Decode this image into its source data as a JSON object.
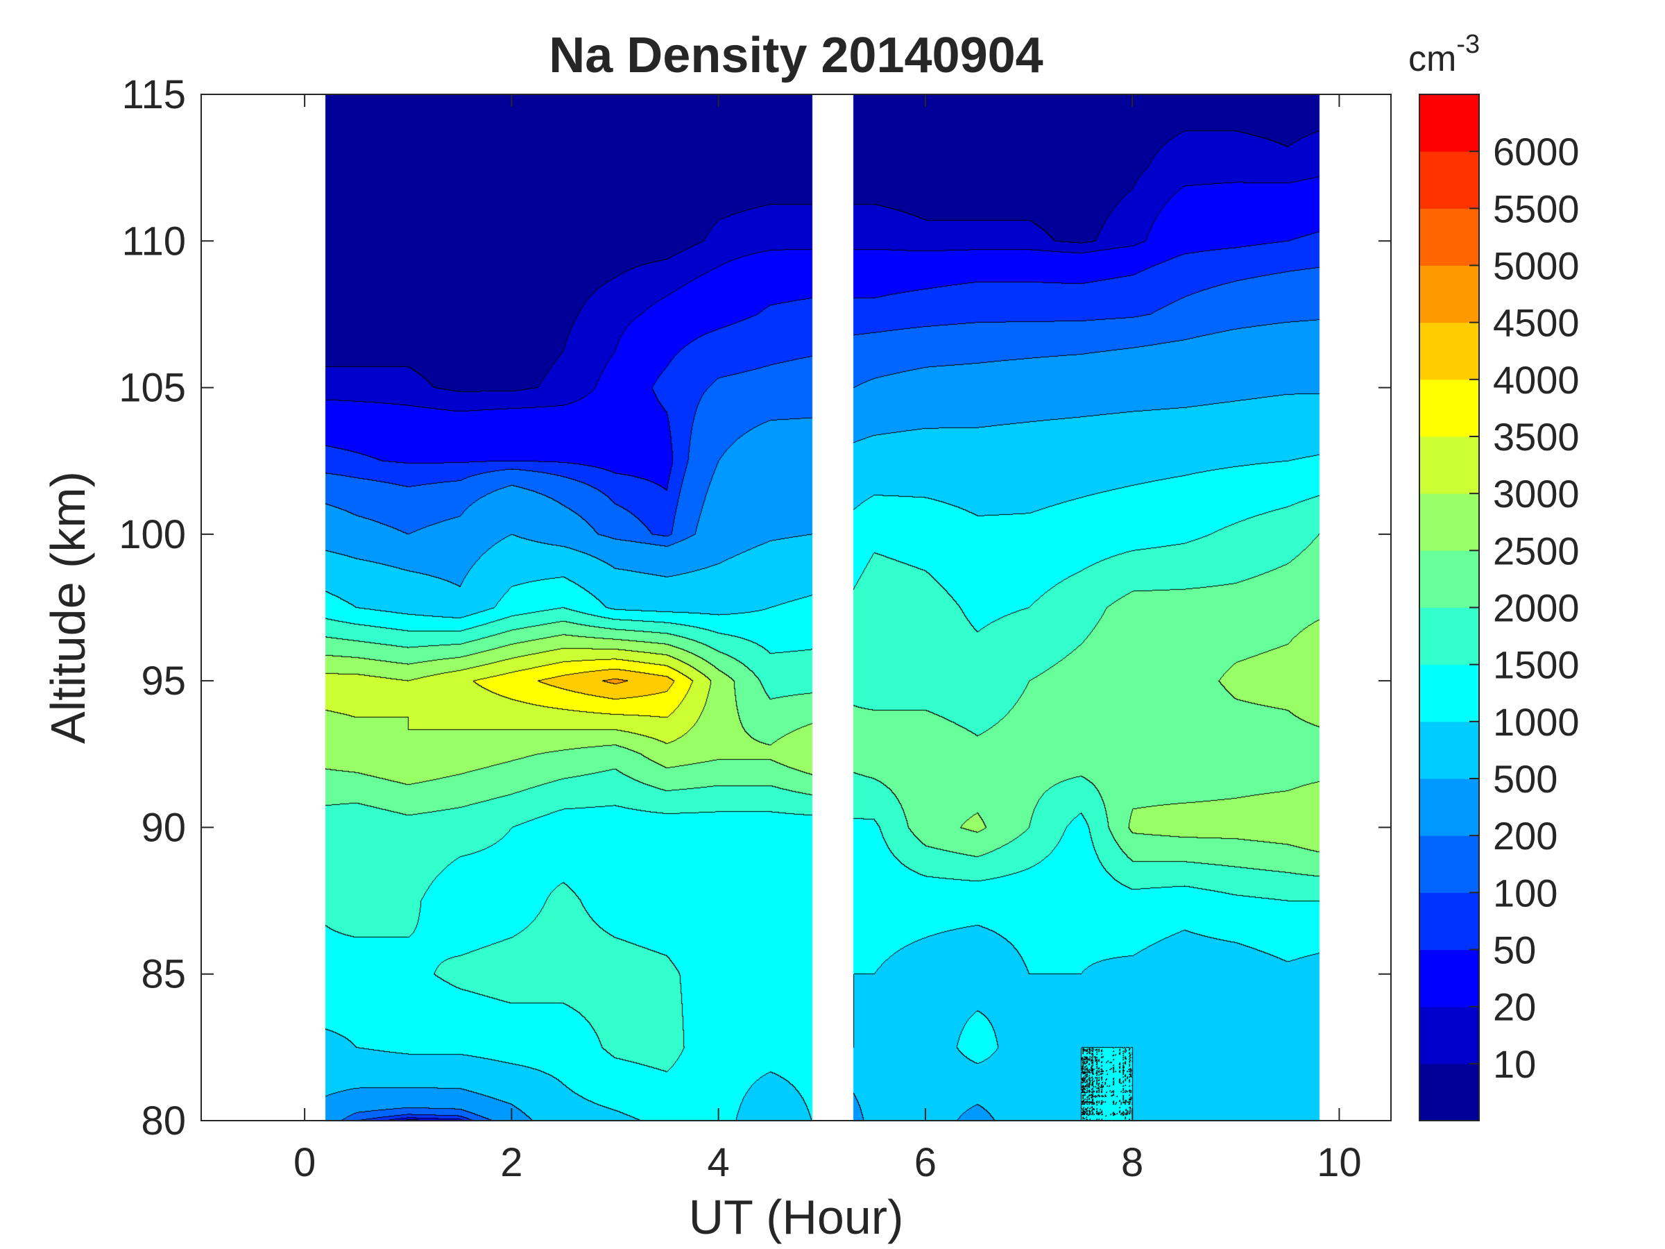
{
  "chart_data": {
    "type": "heatmap",
    "style": "filled-contour",
    "title": "Na Density 20140904",
    "xlabel": "UT (Hour)",
    "ylabel": "Altitude (km)",
    "xlim": [
      -1,
      10.5
    ],
    "ylim": [
      80,
      115
    ],
    "xticks": [
      0,
      2,
      4,
      6,
      8,
      10
    ],
    "yticks": [
      80,
      85,
      90,
      95,
      100,
      105,
      110,
      115
    ],
    "grid": false,
    "colorbar": {
      "unit": "cm",
      "unit_exponent": "-3",
      "placement": "right",
      "levels": [
        10,
        20,
        50,
        100,
        200,
        500,
        1000,
        1500,
        2000,
        2500,
        3000,
        3500,
        4000,
        4500,
        5000,
        5500,
        6000
      ],
      "tick_labels": [
        "10",
        "20",
        "50",
        "100",
        "200",
        "500",
        "1000",
        "1500",
        "2000",
        "2500",
        "3000",
        "3500",
        "4000",
        "4500",
        "5000",
        "5500",
        "6000"
      ],
      "colors": [
        "#000099",
        "#0000cc",
        "#0000ff",
        "#0033ff",
        "#0066ff",
        "#0099ff",
        "#00ccff",
        "#00ffff",
        "#33ffcc",
        "#66ff99",
        "#99ff66",
        "#ccff33",
        "#ffff00",
        "#ffcc00",
        "#ff9900",
        "#ff6600",
        "#ff3300",
        "#ff0000"
      ]
    },
    "altitudes": [
      80,
      82.5,
      85,
      87.5,
      90,
      92.5,
      95,
      97.5,
      100,
      102.5,
      105,
      107.5,
      110,
      112.5,
      115
    ],
    "segments": [
      {
        "hours": [
          0.2,
          0.5,
          1,
          1.5,
          2,
          2.5,
          3,
          3.5,
          4,
          4.5,
          4.9
        ],
        "density": [
          [
            300,
            100,
            5,
            30,
            300,
            800,
            900,
            1100,
            1100,
            800,
            1000
          ],
          [
            900,
            1000,
            1100,
            1100,
            1200,
            1200,
            1600,
            1700,
            1100,
            1100,
            1100
          ],
          [
            1300,
            1200,
            1400,
            1600,
            1700,
            1700,
            1700,
            1600,
            1200,
            1100,
            1100
          ],
          [
            1600,
            1800,
            1600,
            1200,
            1300,
            1600,
            1300,
            1200,
            1100,
            1100,
            1100
          ],
          [
            1700,
            1600,
            1800,
            1700,
            1500,
            1200,
            1200,
            1200,
            1200,
            1200,
            1200
          ],
          [
            2700,
            2800,
            3000,
            2800,
            2600,
            2400,
            2200,
            2800,
            2600,
            2600,
            3000
          ],
          [
            3200,
            3200,
            3000,
            3400,
            3800,
            4200,
            4600,
            4200,
            2800,
            1800,
            1800
          ],
          [
            1200,
            1000,
            800,
            600,
            1200,
            1500,
            900,
            800,
            800,
            1000,
            1100
          ],
          [
            300,
            250,
            200,
            250,
            500,
            300,
            150,
            80,
            300,
            450,
            500
          ],
          [
            60,
            55,
            45,
            45,
            50,
            45,
            30,
            30,
            200,
            300,
            300
          ],
          [
            12,
            12,
            12,
            8,
            8,
            12,
            25,
            60,
            110,
            120,
            130
          ],
          [
            5,
            5,
            5,
            5,
            5,
            8,
            15,
            25,
            35,
            55,
            60
          ],
          [
            5,
            5,
            5,
            5,
            5,
            5,
            5,
            5,
            12,
            15,
            15
          ],
          [
            5,
            5,
            5,
            5,
            5,
            5,
            5,
            5,
            5,
            5,
            5
          ],
          [
            5,
            5,
            5,
            5,
            5,
            5,
            5,
            5,
            5,
            5,
            5
          ]
        ]
      },
      {
        "hours": [
          5.3,
          5.5,
          6,
          6.5,
          7,
          7.5,
          8,
          8.5,
          9,
          9.5,
          9.8
        ],
        "density": [
          [
            200,
            800,
            800,
            300,
            900,
            1000,
            1000,
            900,
            700,
            900,
            900
          ],
          [
            1000,
            900,
            700,
            1200,
            700,
            1000,
            1000,
            800,
            800,
            900,
            800
          ],
          [
            1000,
            1000,
            900,
            800,
            1000,
            1000,
            900,
            700,
            700,
            900,
            800
          ],
          [
            1200,
            1100,
            1100,
            1100,
            1100,
            1100,
            1300,
            1200,
            1400,
            1500,
            1500
          ],
          [
            1400,
            1400,
            2300,
            2600,
            2000,
            1300,
            2600,
            2700,
            2700,
            2800,
            3000
          ],
          [
            2200,
            2300,
            2300,
            2100,
            2200,
            2300,
            2200,
            2100,
            2200,
            2200,
            2200
          ],
          [
            1900,
            1800,
            1800,
            1700,
            2000,
            2200,
            2400,
            2300,
            2600,
            2700,
            3000
          ],
          [
            1600,
            1800,
            1700,
            1400,
            1500,
            1800,
            2200,
            2200,
            2200,
            2300,
            2400
          ],
          [
            1200,
            1400,
            1300,
            1100,
            1100,
            1200,
            1300,
            1400,
            1600,
            1800,
            2000
          ],
          [
            600,
            650,
            700,
            700,
            750,
            800,
            850,
            900,
            950,
            1000,
            1050
          ],
          [
            200,
            220,
            250,
            260,
            280,
            300,
            330,
            350,
            400,
            450,
            450
          ],
          [
            60,
            60,
            70,
            80,
            80,
            80,
            90,
            120,
            150,
            170,
            180
          ],
          [
            15,
            15,
            12,
            12,
            12,
            8,
            15,
            35,
            40,
            50,
            55
          ],
          [
            5,
            5,
            5,
            5,
            5,
            5,
            8,
            15,
            15,
            12,
            15
          ],
          [
            5,
            5,
            5,
            5,
            5,
            5,
            5,
            5,
            5,
            5,
            5
          ]
        ]
      }
    ]
  }
}
